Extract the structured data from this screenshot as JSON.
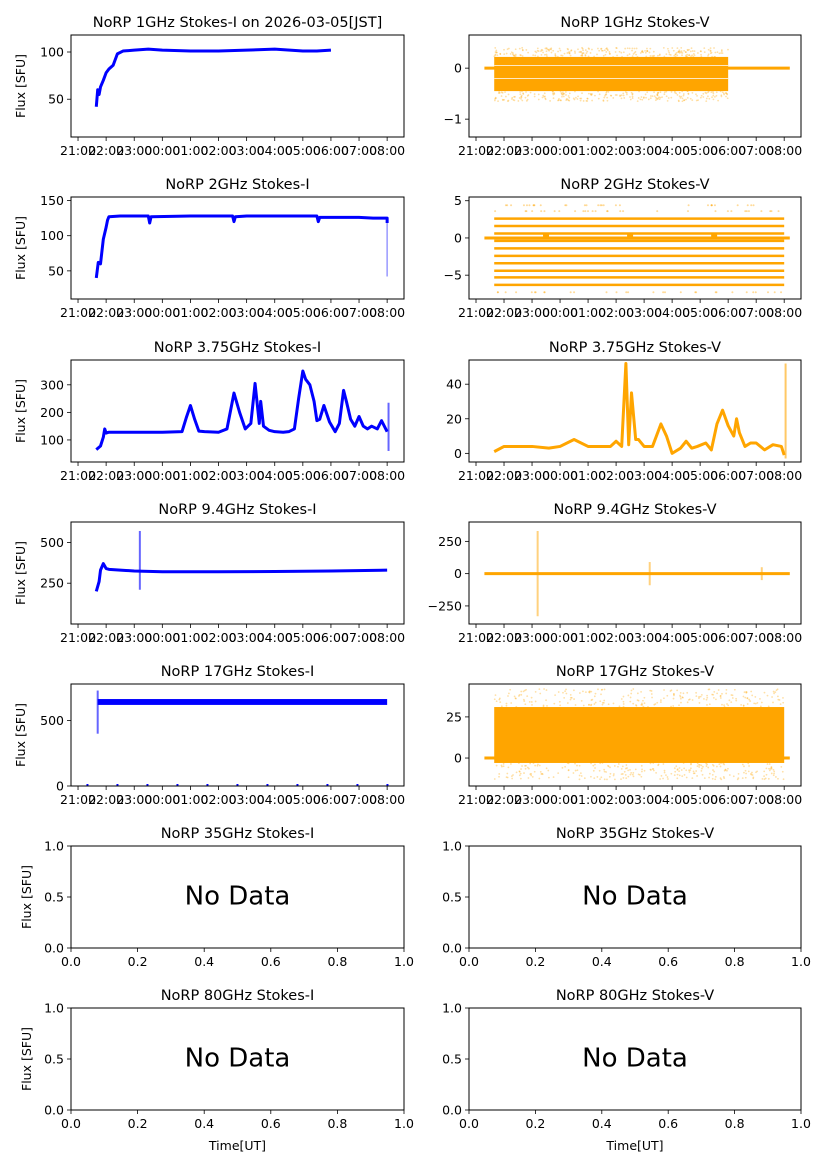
{
  "figure": {
    "title_date": "2026-03-05[JST]",
    "shared_xlabel": "Time[UT]",
    "shared_ylabel": "Flux [SFU]",
    "no_data_text": "No Data",
    "colors": {
      "stokes_i": "#0000ff",
      "stokes_v": "#ffa500"
    }
  },
  "chart_data": [
    {
      "type": "line",
      "panel": "1GHz-I",
      "title": "NoRP 1GHz Stokes-I on 2026-03-05[JST]",
      "ylabel": "Flux [SFU]",
      "xlabel": "",
      "ylim": [
        10,
        118
      ],
      "yticks": [
        50,
        100
      ],
      "xticks": [
        "21:00",
        "22:00",
        "23:00",
        "00:00",
        "01:00",
        "02:00",
        "03:00",
        "04:00",
        "05:00",
        "06:00",
        "07:00",
        "08:00"
      ],
      "xlim_hours": [
        -0.25,
        11.6
      ],
      "color": "#0000ff",
      "data_is_approximate_trace": true,
      "series": [
        {
          "name": "Stokes-I",
          "x": [
            0.65,
            0.7,
            0.75,
            0.8,
            0.9,
            1.0,
            1.1,
            1.25,
            1.4,
            1.6,
            2.0,
            2.5,
            3,
            4,
            5,
            6,
            7,
            8,
            8.5,
            9.0
          ],
          "y": [
            42,
            60,
            55,
            63,
            70,
            78,
            82,
            86,
            98,
            101,
            102,
            103,
            102,
            101,
            101,
            102,
            103,
            101,
            101,
            102
          ]
        }
      ]
    },
    {
      "type": "scatter",
      "panel": "1GHz-V",
      "title": "NoRP 1GHz Stokes-V",
      "ylim": [
        -1.35,
        0.65
      ],
      "yticks": [
        -1,
        0
      ],
      "xticks": [
        "21:00",
        "22:00",
        "23:00",
        "00:00",
        "01:00",
        "02:00",
        "03:00",
        "04:00",
        "05:00",
        "06:00",
        "07:00",
        "08:00"
      ],
      "xlim_hours": [
        -0.25,
        11.6
      ],
      "color": "#ffa500",
      "band": {
        "x_start": 0.65,
        "x_end": 9.0,
        "y_low": -0.45,
        "y_high": 0.22,
        "scatter_low": -0.65,
        "scatter_high": 0.4
      },
      "baseline": {
        "x_start": 0.3,
        "x_end": 11.2,
        "y": 0
      }
    },
    {
      "type": "line",
      "panel": "2GHz-I",
      "title": "NoRP 2GHz Stokes-I",
      "ylabel": "Flux [SFU]",
      "ylim": [
        10,
        155
      ],
      "yticks": [
        50,
        100,
        150
      ],
      "xticks": [
        "21:00",
        "22:00",
        "23:00",
        "00:00",
        "01:00",
        "02:00",
        "03:00",
        "04:00",
        "05:00",
        "06:00",
        "07:00",
        "08:00"
      ],
      "xlim_hours": [
        -0.25,
        11.6
      ],
      "color": "#0000ff",
      "series": [
        {
          "name": "Stokes-I",
          "x": [
            0.65,
            0.72,
            0.8,
            0.9,
            1.0,
            1.05,
            1.1,
            1.5,
            2.5,
            2.55,
            2.6,
            4,
            5.5,
            5.55,
            5.6,
            6,
            8.5,
            8.55,
            8.6,
            10,
            10.5,
            11,
            11.0
          ],
          "y": [
            40,
            62,
            60,
            95,
            112,
            122,
            127,
            128,
            128,
            118,
            127,
            128,
            128,
            120,
            127,
            128,
            128,
            120,
            126,
            126,
            125,
            125,
            118
          ]
        }
      ],
      "dropout": {
        "x": 11.0,
        "y_low": 42,
        "y_high": 118
      }
    },
    {
      "type": "scatter",
      "panel": "2GHz-V",
      "title": "NoRP 2GHz Stokes-V",
      "ylim": [
        -8.2,
        5.5
      ],
      "yticks": [
        -5,
        0,
        5
      ],
      "xticks": [
        "21:00",
        "22:00",
        "23:00",
        "00:00",
        "01:00",
        "02:00",
        "03:00",
        "04:00",
        "05:00",
        "06:00",
        "07:00",
        "08:00"
      ],
      "xlim_hours": [
        -0.25,
        11.6
      ],
      "color": "#ffa500",
      "levels": [
        2.6,
        1.6,
        0.6,
        -0.4,
        -1.4,
        -2.4,
        -3.4,
        -4.4,
        -5.3,
        -6.3
      ],
      "sparse_levels": [
        3.6,
        4.4,
        -7.3
      ],
      "x_start": 0.65,
      "x_end": 11.0,
      "baseline": {
        "x_start": 0.3,
        "x_end": 11.2,
        "y": 0
      },
      "blips_hours": [
        2.5,
        5.5,
        8.5
      ]
    },
    {
      "type": "line",
      "panel": "3.75GHz-I",
      "title": "NoRP 3.75GHz Stokes-I",
      "ylabel": "Flux [SFU]",
      "ylim": [
        20,
        390
      ],
      "yticks": [
        100,
        200,
        300
      ],
      "xticks": [
        "21:00",
        "22:00",
        "23:00",
        "00:00",
        "01:00",
        "02:00",
        "03:00",
        "04:00",
        "05:00",
        "06:00",
        "07:00",
        "08:00"
      ],
      "xlim_hours": [
        -0.25,
        11.6
      ],
      "color": "#0000ff",
      "series": [
        {
          "name": "Stokes-I",
          "x": [
            0.65,
            0.8,
            0.9,
            0.95,
            1.0,
            1.1,
            1.5,
            2,
            3,
            3.7,
            3.85,
            4.0,
            4.15,
            4.3,
            4.5,
            5,
            5.3,
            5.55,
            5.75,
            5.95,
            6.15,
            6.3,
            6.45,
            6.5,
            6.6,
            6.8,
            7,
            7.3,
            7.5,
            7.7,
            7.85,
            8.0,
            8.1,
            8.25,
            8.4,
            8.5,
            8.6,
            8.75,
            8.95,
            9.15,
            9.3,
            9.45,
            9.55,
            9.7,
            9.85,
            10.0,
            10.15,
            10.3,
            10.45,
            10.65,
            10.8,
            11.0
          ],
          "y": [
            65,
            78,
            110,
            140,
            125,
            128,
            128,
            128,
            128,
            130,
            180,
            225,
            175,
            132,
            130,
            128,
            140,
            270,
            200,
            140,
            160,
            305,
            160,
            240,
            150,
            135,
            130,
            128,
            130,
            140,
            250,
            350,
            320,
            300,
            240,
            170,
            175,
            225,
            165,
            130,
            160,
            280,
            240,
            175,
            150,
            185,
            150,
            140,
            150,
            140,
            170,
            130
          ]
        }
      ],
      "spike": {
        "x": 11.05,
        "y_low": 60,
        "y_high": 235
      }
    },
    {
      "type": "line",
      "panel": "3.75GHz-V",
      "title": "NoRP 3.75GHz Stokes-V",
      "ylim": [
        -5,
        54
      ],
      "yticks": [
        0,
        20,
        40
      ],
      "xticks": [
        "21:00",
        "22:00",
        "23:00",
        "00:00",
        "01:00",
        "02:00",
        "03:00",
        "04:00",
        "05:00",
        "06:00",
        "07:00",
        "08:00"
      ],
      "xlim_hours": [
        -0.25,
        11.6
      ],
      "color": "#ffa500",
      "series": [
        {
          "name": "Stokes-V",
          "x": [
            0.65,
            1.0,
            2,
            2.6,
            3,
            3.5,
            4,
            4.5,
            4.8,
            5,
            5.2,
            5.35,
            5.45,
            5.55,
            5.7,
            5.8,
            6,
            6.3,
            6.6,
            6.8,
            7,
            7.3,
            7.5,
            7.7,
            7.9,
            8.2,
            8.4,
            8.6,
            8.8,
            9.0,
            9.2,
            9.3,
            9.4,
            9.6,
            9.8,
            10,
            10.3,
            10.6,
            10.9,
            11.0
          ],
          "y": [
            1,
            4,
            4,
            3,
            4,
            8,
            4,
            4,
            4,
            7,
            4,
            52,
            5,
            35,
            8,
            8,
            4,
            4,
            17,
            10,
            0,
            3,
            7,
            3,
            4,
            6,
            2,
            17,
            25,
            16,
            10,
            20,
            12,
            4,
            6,
            6,
            2,
            5,
            4,
            -1
          ]
        }
      ],
      "spike": {
        "x": 11.05,
        "y_low": -3,
        "y_high": 52
      }
    },
    {
      "type": "line",
      "panel": "9.4GHz-I",
      "title": "NoRP 9.4GHz Stokes-I",
      "ylabel": "Flux [SFU]",
      "ylim": [
        0,
        625
      ],
      "yticks": [
        250,
        500
      ],
      "xticks": [
        "21:00",
        "22:00",
        "23:00",
        "00:00",
        "01:00",
        "02:00",
        "03:00",
        "04:00",
        "05:00",
        "06:00",
        "07:00",
        "08:00"
      ],
      "xlim_hours": [
        -0.25,
        11.6
      ],
      "color": "#0000ff",
      "series": [
        {
          "name": "Stokes-I",
          "x": [
            0.65,
            0.75,
            0.8,
            0.9,
            1.0,
            1.1,
            1.5,
            2,
            3,
            5,
            7,
            9,
            11.0
          ],
          "y": [
            200,
            260,
            330,
            370,
            340,
            335,
            330,
            325,
            320,
            320,
            322,
            325,
            330
          ]
        }
      ],
      "spike": {
        "x": 2.2,
        "y_low": 210,
        "y_high": 570
      }
    },
    {
      "type": "scatter",
      "panel": "9.4GHz-V",
      "title": "NoRP 9.4GHz Stokes-V",
      "ylim": [
        -390,
        400
      ],
      "yticks": [
        -250,
        0,
        250
      ],
      "xticks": [
        "21:00",
        "22:00",
        "23:00",
        "00:00",
        "01:00",
        "02:00",
        "03:00",
        "04:00",
        "05:00",
        "06:00",
        "07:00",
        "08:00"
      ],
      "xlim_hours": [
        -0.25,
        11.6
      ],
      "color": "#ffa500",
      "baseline": {
        "x_start": 0.3,
        "x_end": 11.2,
        "y": 0
      },
      "bursts": [
        {
          "x": 2.2,
          "amp": 330
        },
        {
          "x": 6.2,
          "amp": 90
        },
        {
          "x": 10.2,
          "amp": 50
        }
      ]
    },
    {
      "type": "scatter",
      "panel": "17GHz-I",
      "title": "NoRP 17GHz Stokes-I",
      "ylabel": "Flux [SFU]",
      "ylim": [
        0,
        780
      ],
      "yticks": [
        0,
        500
      ],
      "xticks": [
        "21:00",
        "22:00",
        "23:00",
        "00:00",
        "01:00",
        "02:00",
        "03:00",
        "04:00",
        "05:00",
        "06:00",
        "07:00",
        "08:00"
      ],
      "xlim_hours": [
        -0.25,
        11.6
      ],
      "color": "#0000ff",
      "band": {
        "x_start": 0.7,
        "x_end": 11.0,
        "y_low": 620,
        "y_high": 665
      },
      "spike": {
        "x": 0.7,
        "y_low": 400,
        "y_high": 730
      }
    },
    {
      "type": "scatter",
      "panel": "17GHz-V",
      "title": "NoRP 17GHz Stokes-V",
      "ylim": [
        -17,
        45
      ],
      "yticks": [
        0,
        25
      ],
      "xticks": [
        "21:00",
        "22:00",
        "23:00",
        "00:00",
        "01:00",
        "02:00",
        "03:00",
        "04:00",
        "05:00",
        "06:00",
        "07:00",
        "08:00"
      ],
      "xlim_hours": [
        -0.25,
        11.6
      ],
      "color": "#ffa500",
      "band": {
        "x_start": 0.65,
        "x_end": 11.0,
        "y_low": -3,
        "y_high": 31,
        "scatter_low": -13,
        "scatter_high": 42
      },
      "baseline": {
        "x_start": 0.3,
        "x_end": 11.2,
        "y": 0
      }
    },
    {
      "type": "scatter",
      "panel": "35GHz-I",
      "title": "NoRP 35GHz Stokes-I",
      "ylabel": "Flux [SFU]",
      "ylim": [
        0,
        1
      ],
      "xlim": [
        0,
        1
      ],
      "yticks": [
        "0.0",
        "0.5",
        "1.0"
      ],
      "xticks": [
        "0.0",
        "0.2",
        "0.4",
        "0.6",
        "0.8",
        "1.0"
      ],
      "annotation": "No Data"
    },
    {
      "type": "scatter",
      "panel": "35GHz-V",
      "title": "NoRP 35GHz Stokes-V",
      "ylim": [
        0,
        1
      ],
      "xlim": [
        0,
        1
      ],
      "yticks": [
        "0.0",
        "0.5",
        "1.0"
      ],
      "xticks": [
        "0.0",
        "0.2",
        "0.4",
        "0.6",
        "0.8",
        "1.0"
      ],
      "annotation": "No Data"
    },
    {
      "type": "scatter",
      "panel": "80GHz-I",
      "title": "NoRP 80GHz Stokes-I",
      "ylabel": "Flux [SFU]",
      "xlabel": "Time[UT]",
      "ylim": [
        0,
        1
      ],
      "xlim": [
        0,
        1
      ],
      "yticks": [
        "0.0",
        "0.5",
        "1.0"
      ],
      "xticks": [
        "0.0",
        "0.2",
        "0.4",
        "0.6",
        "0.8",
        "1.0"
      ],
      "annotation": "No Data"
    },
    {
      "type": "scatter",
      "panel": "80GHz-V",
      "title": "NoRP 80GHz Stokes-V",
      "xlabel": "Time[UT]",
      "ylim": [
        0,
        1
      ],
      "xlim": [
        0,
        1
      ],
      "yticks": [
        "0.0",
        "0.5",
        "1.0"
      ],
      "xticks": [
        "0.0",
        "0.2",
        "0.4",
        "0.6",
        "0.8",
        "1.0"
      ],
      "annotation": "No Data"
    }
  ]
}
